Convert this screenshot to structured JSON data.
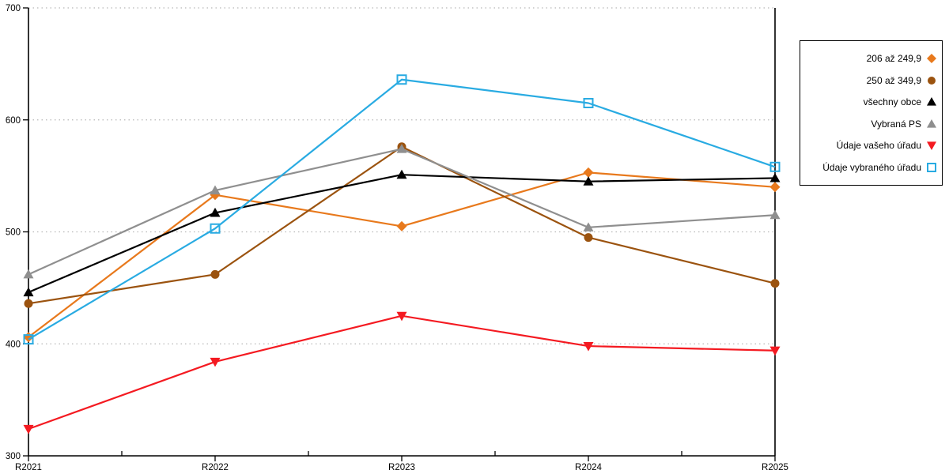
{
  "chart_data": {
    "type": "line",
    "title": "",
    "x_categories": [
      "R2021",
      "R2022",
      "R2023",
      "R2024",
      "R2025"
    ],
    "y_axis": {
      "min": 300,
      "max": 700,
      "tick_step": 100,
      "tick_labels": [
        "300",
        "400",
        "500",
        "600",
        "700"
      ]
    },
    "grid": {
      "horizontal_dotted": true,
      "gridline_values": [
        400,
        500,
        600,
        700
      ],
      "color": "#b8b8b8"
    },
    "axis_color": "#000000",
    "legend_position": "right-outside",
    "series": [
      {
        "name": "206 až 249,9",
        "marker": "diamond",
        "color": "#e8791c",
        "values": [
          406,
          533,
          505,
          553,
          540
        ]
      },
      {
        "name": "250 až 349,9",
        "marker": "circle",
        "color": "#9b530f",
        "values": [
          436,
          462,
          576,
          495,
          454
        ]
      },
      {
        "name": "všechny obce",
        "marker": "triangle-up",
        "color": "#000000",
        "values": [
          446,
          517,
          551,
          545,
          548
        ]
      },
      {
        "name": "Vybraná PS",
        "marker": "triangle-up",
        "color": "#8f8f8f",
        "values": [
          462,
          537,
          574,
          504,
          515
        ]
      },
      {
        "name": "Údaje vašeho úřadu",
        "marker": "triangle-down",
        "color": "#f41a21",
        "values": [
          324,
          384,
          425,
          398,
          394
        ]
      },
      {
        "name": "Údaje vybraného úřadu",
        "marker": "square-open",
        "color": "#29abe2",
        "values": [
          404,
          503,
          636,
          615,
          558
        ]
      }
    ]
  }
}
